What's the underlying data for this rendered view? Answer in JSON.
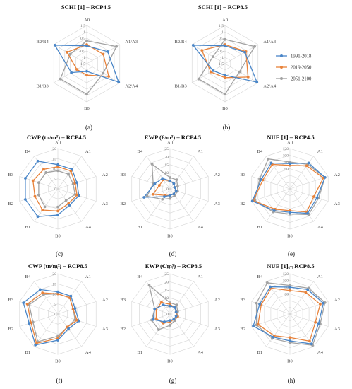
{
  "legend": [
    {
      "label": "1991-2018",
      "color": "#4a86c8"
    },
    {
      "label": "2019-2050",
      "color": "#e8823a"
    },
    {
      "label": "2051-2100",
      "color": "#a2a2a2"
    }
  ],
  "chart_data": [
    {
      "type": "radar",
      "panel": "(a)",
      "title": "SCHI [1] – RCP4.5",
      "axes": [
        "A0",
        "A1/A3",
        "A2/A4",
        "B0",
        "B1/B3",
        "B2/B4"
      ],
      "rmin": -1.5,
      "rmax": 1.5,
      "tick_step": 0.5,
      "tick_labels": [
        "-1.5",
        "-1",
        "-0.5",
        "0",
        "0.5",
        "1",
        "1.5"
      ],
      "series": [
        {
          "name": "1991-2018",
          "values": [
            -0.1,
            0.4,
            1.4,
            -0.9,
            -0.1,
            1.4
          ]
        },
        {
          "name": "2019-2050",
          "values": [
            0.0,
            0.0,
            0.5,
            -0.6,
            -0.6,
            0.3
          ]
        },
        {
          "name": "2051-2100",
          "values": [
            0.3,
            1.2,
            0.0,
            0.9,
            0.9,
            0.0
          ]
        }
      ]
    },
    {
      "type": "radar",
      "panel": "(b)",
      "title": "SCHI [1] – RCP8.5",
      "axes": [
        "A0",
        "A1/A3",
        "A2/A4",
        "B0",
        "B1/B3",
        "B2/B4"
      ],
      "rmin": -1.5,
      "rmax": 1.5,
      "tick_step": 0.5,
      "tick_labels": [
        "-1.5",
        "-1",
        "-0.5",
        "0",
        "0.5",
        "1",
        "1.5"
      ],
      "series": [
        {
          "name": "1991-2018",
          "values": [
            -0.1,
            0.3,
            1.4,
            -0.6,
            -0.4,
            1.4
          ]
        },
        {
          "name": "2019-2050",
          "values": [
            0.0,
            0.4,
            0.6,
            -0.4,
            -0.2,
            0.6
          ]
        },
        {
          "name": "2051-2100",
          "values": [
            0.4,
            1.2,
            -0.2,
            0.9,
            0.9,
            -0.4
          ]
        }
      ]
    },
    {
      "type": "radar",
      "panel": "(c)",
      "title": "CWP (tn/m³) – RCP4.5",
      "axes": [
        "A0",
        "A1",
        "A2",
        "A3",
        "A4",
        "B0",
        "B1",
        "B2",
        "B3",
        "B4"
      ],
      "rmin": 0,
      "rmax": 20,
      "tick_step": 5,
      "tick_labels": [
        "0",
        "5",
        "10",
        "15",
        "20"
      ],
      "series": [
        {
          "name": "1991-2018",
          "values": [
            12,
            12,
            10,
            11,
            10,
            13,
            17,
            17,
            17,
            17
          ]
        },
        {
          "name": "2019-2050",
          "values": [
            11,
            11,
            9,
            10,
            9,
            11,
            13,
            12,
            13,
            12
          ]
        },
        {
          "name": "2051-2100",
          "values": [
            9,
            9,
            8,
            9,
            7,
            9,
            11,
            10,
            10,
            10
          ]
        }
      ]
    },
    {
      "type": "radar",
      "panel": "(d)",
      "title": "EWP (€/m³) – RCP4.5",
      "axes": [
        "A0",
        "A1",
        "A2",
        "A3",
        "A4",
        "B0",
        "B1",
        "B2",
        "B3",
        "B4"
      ],
      "rmin": 0,
      "rmax": 25,
      "tick_step": 5,
      "tick_labels": [
        "0",
        "5",
        "10",
        "15",
        "20",
        "25"
      ],
      "series": [
        {
          "name": "1991-2018",
          "values": [
            5,
            4,
            3,
            4,
            4,
            4,
            6,
            17,
            10,
            8
          ]
        },
        {
          "name": "2019-2050",
          "values": [
            5,
            4,
            3,
            4,
            4,
            4,
            5,
            11,
            7,
            7
          ]
        },
        {
          "name": "2051-2100",
          "values": [
            7,
            7,
            5,
            5,
            5,
            6,
            8,
            15,
            11,
            19
          ]
        }
      ]
    },
    {
      "type": "radar",
      "panel": "(e)",
      "title": "NUE [1] – RCP4.5",
      "axes": [
        "A0",
        "A1",
        "A2",
        "A3",
        "A4",
        "B0",
        "B1",
        "B2",
        "B3",
        "B4"
      ],
      "rmin": 0,
      "rmax": 120,
      "tick_step": 20,
      "tick_labels": [
        "60",
        "80",
        "100",
        "120"
      ],
      "series": [
        {
          "name": "1991-2018",
          "values": [
            75,
            95,
            110,
            85,
            90,
            70,
            80,
            118,
            90,
            95
          ]
        },
        {
          "name": "2019-2050",
          "values": [
            70,
            85,
            105,
            75,
            85,
            65,
            75,
            115,
            85,
            90
          ]
        },
        {
          "name": "2051-2100",
          "values": [
            80,
            90,
            110,
            90,
            95,
            75,
            85,
            110,
            95,
            110
          ]
        }
      ]
    },
    {
      "type": "radar",
      "panel": "(f)",
      "title": "CWP (tn/m³) – RCP8.5",
      "axes": [
        "A0",
        "A1",
        "A2",
        "A3",
        "A4",
        "B0",
        "B1",
        "B2",
        "B3",
        "B4"
      ],
      "rmin": 0,
      "rmax": 20,
      "tick_step": 5,
      "tick_labels": [
        "0",
        "5",
        "10",
        "15",
        "20"
      ],
      "series": [
        {
          "name": "1991-2018",
          "values": [
            11,
            11,
            9,
            11,
            9,
            13,
            19,
            15,
            18,
            15
          ]
        },
        {
          "name": "2019-2050",
          "values": [
            10,
            10,
            8,
            10,
            8,
            12,
            18,
            14,
            16,
            13
          ]
        },
        {
          "name": "2051-2100",
          "values": [
            10,
            10,
            8,
            9,
            8,
            11,
            17,
            13,
            15,
            12
          ]
        }
      ]
    },
    {
      "type": "radar",
      "panel": "(g)",
      "title": "EWP (€/m³) – RCP8.5",
      "axes": [
        "A0",
        "A1",
        "A2",
        "A3",
        "A4",
        "B0",
        "B1",
        "B2",
        "B3",
        "B4"
      ],
      "rmin": 0,
      "rmax": 25,
      "tick_step": 5,
      "tick_labels": [
        "0",
        "5",
        "10",
        "15",
        "20",
        "25"
      ],
      "series": [
        {
          "name": "1991-2018",
          "values": [
            5,
            5,
            4,
            4,
            4,
            4,
            6,
            11,
            10,
            7
          ]
        },
        {
          "name": "2019-2050",
          "values": [
            6,
            5,
            4,
            5,
            4,
            5,
            7,
            9,
            9,
            9
          ]
        },
        {
          "name": "2051-2100",
          "values": [
            7,
            7,
            5,
            5,
            5,
            7,
            12,
            12,
            10,
            22
          ]
        }
      ]
    },
    {
      "type": "radar",
      "panel": "(h)",
      "title": "NUE [1] – RCP8.5",
      "axes": [
        "A0",
        "A1",
        "A2",
        "A3",
        "A4",
        "B0",
        "B1",
        "B2",
        "B3",
        "B4"
      ],
      "rmin": 0,
      "rmax": 120,
      "tick_step": 20,
      "tick_labels": [
        "60",
        "80",
        "100",
        "120"
      ],
      "series": [
        {
          "name": "1991-2018",
          "values": [
            80,
            90,
            105,
            90,
            110,
            80,
            85,
            115,
            95,
            100
          ]
        },
        {
          "name": "2019-2050",
          "values": [
            70,
            80,
            95,
            80,
            100,
            70,
            80,
            100,
            90,
            95
          ]
        },
        {
          "name": "2051-2100",
          "values": [
            85,
            95,
            110,
            95,
            115,
            85,
            90,
            105,
            105,
            115
          ]
        }
      ]
    }
  ]
}
